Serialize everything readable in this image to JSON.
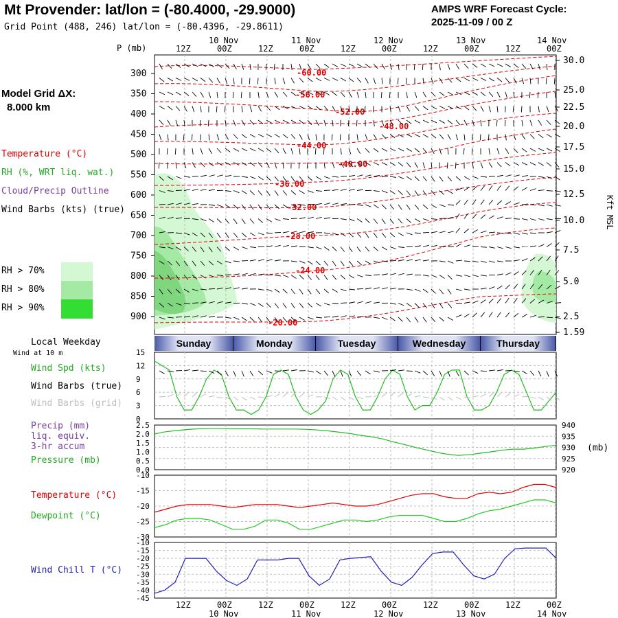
{
  "header": {
    "title": "Mt Provender:  lat/lon = (-80.4000, -29.9000)",
    "subtitle": "Grid Point (488, 246) lat/lon = (-80.4396, -29.8611)",
    "cycle_line1": "AMPS WRF Forecast Cycle:",
    "cycle_line2": "2025-11-09 / 00  Z",
    "model_grid_line1": "Model Grid ΔX:",
    "model_grid_line2": "8.000 km"
  },
  "legend": {
    "temperature": "Temperature (°C)",
    "rh": "RH (%, WRT liq. wat.)",
    "cloud": "Cloud/Precip Outline",
    "wind": "Wind Barbs (kts) (true)",
    "rh70": "RH > 70%",
    "rh80": "RH > 80%",
    "rh90": "RH > 90%"
  },
  "colors": {
    "temperature": "#e00000",
    "rh": "#22bb22",
    "cloud": "#7a3ea0",
    "pressure": "#22bb22",
    "dewpoint": "#22cc22",
    "windchill": "#1f1fb0",
    "rh70": "#d4f7d4",
    "rh80": "#a4eaa4",
    "rh90": "#33dd33",
    "grid": "#999999"
  },
  "axes": {
    "time_ticks": [
      "12Z",
      "00Z",
      "12Z",
      "00Z",
      "12Z",
      "00Z",
      "12Z",
      "00Z",
      "12Z",
      "00Z"
    ],
    "date_labels": [
      "10 Nov",
      "11 Nov",
      "12 Nov",
      "13 Nov",
      "14 Nov"
    ],
    "p_label": "P (mb)",
    "pressure_levels": [
      "300",
      "350",
      "400",
      "450",
      "500",
      "550",
      "600",
      "650",
      "700",
      "750",
      "800",
      "850",
      "900"
    ],
    "kft_levels": [
      "30.0",
      "25.0",
      "22.5",
      "20.0",
      "17.5",
      "15.0",
      "12.5",
      "10.0",
      "7.5",
      "5.0",
      "2.5",
      "1.59"
    ],
    "kft_label": "Kft MSL"
  },
  "weekday": {
    "label": "Local Weekday",
    "wind_note": "Wind at 10 m",
    "days": [
      "Sunday",
      "Monday",
      "Tuesday",
      "Wednesday",
      "Thursday"
    ]
  },
  "panel_labels": {
    "wind_spd": "Wind Spd (kts)",
    "wind_true": "Wind Barbs (true)",
    "wind_grid": "Wind Barbs (grid)",
    "precip1": "Precip (mm)",
    "precip2": "liq. equiv.",
    "precip3": "3-hr accum",
    "pressure": "Pressure (mb)",
    "pressure_unit": "(mb)",
    "temperature": "Temperature (°C)",
    "dewpoint": "Dewpoint (°C)",
    "windchill": "Wind Chill T (°C)"
  },
  "chart_data": [
    {
      "type": "heatmap",
      "xlabel": "",
      "ylabel": "P (mb)",
      "y_ticks": [
        300,
        350,
        400,
        450,
        500,
        550,
        600,
        650,
        700,
        750,
        800,
        850,
        900
      ],
      "temperature_contours": [
        {
          "label": "-60.00",
          "value": -60
        },
        {
          "label": "-56.00",
          "value": -56
        },
        {
          "label": "-52.00",
          "value": -52
        },
        {
          "label": "-48.00",
          "value": -48
        },
        {
          "label": "-44.00",
          "value": -44
        },
        {
          "label": "-40.00",
          "value": -40
        },
        {
          "label": "-36.00",
          "value": -36
        },
        {
          "label": "-32.00",
          "value": -32
        },
        {
          "label": "-28.00",
          "value": -28
        },
        {
          "label": "-24.00",
          "value": -24
        },
        {
          "label": "-20.00",
          "value": -20
        }
      ]
    },
    {
      "type": "line",
      "name_label": "Wind Spd (kts)",
      "ylim": [
        0,
        15
      ],
      "y_ticks": [
        0,
        3,
        6,
        9,
        12,
        15
      ],
      "values": [
        13,
        12,
        11,
        5,
        2,
        2,
        5,
        9,
        11,
        10,
        5,
        2,
        2,
        1,
        2,
        5,
        10,
        11,
        10,
        5,
        2,
        1,
        2,
        4,
        9,
        11,
        10,
        5,
        2,
        2,
        5,
        9,
        11,
        10,
        5,
        2,
        3,
        3,
        6,
        10,
        11,
        11,
        5,
        2,
        2,
        3,
        6,
        10,
        11,
        10,
        6,
        2,
        2,
        4,
        6
      ]
    },
    {
      "type": "line",
      "name_label": "Pressure (mb)",
      "ylim": [
        920,
        940
      ],
      "y_ticks": [
        920,
        925,
        930,
        935,
        940
      ],
      "precip_ticks": [
        "0.0",
        "0.5",
        "1.0",
        "1.5",
        "2.0",
        "2.5"
      ],
      "values": [
        936,
        937,
        937.5,
        938,
        938.3,
        938.4,
        938.4,
        938.3,
        938.3,
        938.3,
        938.2,
        938.2,
        938.2,
        938.2,
        938.1,
        937.8,
        937.4,
        936.8,
        936.2,
        935.4,
        934.7,
        933.8,
        932.5,
        931.3,
        930,
        928.9,
        927.8,
        926.9,
        926.4,
        926.7,
        927.4,
        928,
        928.7,
        929.2,
        929.2,
        929.7,
        930.4,
        931
      ]
    },
    {
      "type": "line",
      "ylim": [
        -30,
        -10
      ],
      "y_ticks": [
        -30,
        -25,
        -20,
        -15,
        -10
      ],
      "series": [
        {
          "name": "Temperature (°C)",
          "values": [
            -22,
            -21,
            -20,
            -19.5,
            -19.5,
            -19.5,
            -20,
            -20.5,
            -20,
            -19.5,
            -19.5,
            -19.5,
            -20,
            -20.5,
            -20,
            -19.5,
            -19,
            -19.5,
            -20,
            -20,
            -19.5,
            -18.5,
            -17.5,
            -16.5,
            -16,
            -16,
            -17,
            -17.5,
            -17.5,
            -16,
            -15.5,
            -16,
            -15.5,
            -14,
            -13,
            -13,
            -14
          ]
        },
        {
          "name": "Dewpoint (°C)",
          "values": [
            -27,
            -26,
            -24.5,
            -24,
            -24,
            -24.5,
            -26,
            -27.5,
            -27.5,
            -26.5,
            -24.5,
            -24.5,
            -25.5,
            -27.5,
            -27.5,
            -26.5,
            -25.5,
            -24.5,
            -24.5,
            -25,
            -24.5,
            -23.5,
            -23,
            -23,
            -23,
            -24,
            -25,
            -25,
            -24,
            -22.5,
            -21.5,
            -21,
            -20,
            -19,
            -18,
            -18,
            -19
          ]
        }
      ]
    },
    {
      "type": "line",
      "name_label": "Wind Chill T (°C)",
      "ylim": [
        -45,
        -10
      ],
      "y_ticks": [
        -45,
        -40,
        -35,
        -30,
        -25,
        -20,
        -15,
        -10
      ],
      "values": [
        -42,
        -40,
        -35,
        -20,
        -20,
        -20,
        -28,
        -34,
        -37,
        -33,
        -21,
        -21,
        -21,
        -20,
        -20,
        -31,
        -37,
        -33,
        -21,
        -20,
        -19.5,
        -19,
        -28,
        -35,
        -37,
        -32,
        -24,
        -17,
        -16,
        -16,
        -24,
        -31,
        -33,
        -30,
        -20,
        -14,
        -13.5,
        -13.5,
        -13.5,
        -20
      ]
    }
  ]
}
